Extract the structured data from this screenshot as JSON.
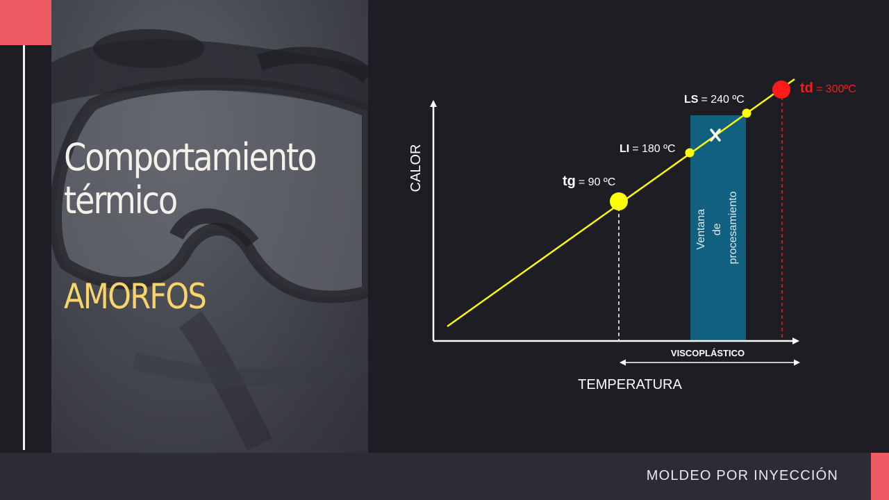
{
  "slide": {
    "title_line1": "Comportamiento",
    "title_line2": "térmico",
    "subtitle": "AMORFOS",
    "footer": "MOLDEO POR INYECCIÓN"
  },
  "diagram": {
    "y_axis_label": "CALOR",
    "x_axis_label": "TEMPERATURA",
    "range_label": "VISCOPLÁSTICO",
    "window_label": [
      "Ventana",
      "de",
      "procesamiento"
    ],
    "points": {
      "tg": {
        "symbol": "tg",
        "value": "= 90 ºC",
        "color": "#ffff00"
      },
      "li": {
        "symbol": "LI",
        "value": "= 180 ºC",
        "color": "#ffff00"
      },
      "ls": {
        "symbol": "LS",
        "value": "= 240 ºC",
        "color": "#ffff00"
      },
      "td": {
        "symbol": "td",
        "value": "= 300ºC",
        "color": "#ff1a1a"
      }
    },
    "colors": {
      "line": "#ffff00",
      "window": "#12607f",
      "axis": "#ffffff",
      "td_marker": "#ff1a1a"
    }
  }
}
